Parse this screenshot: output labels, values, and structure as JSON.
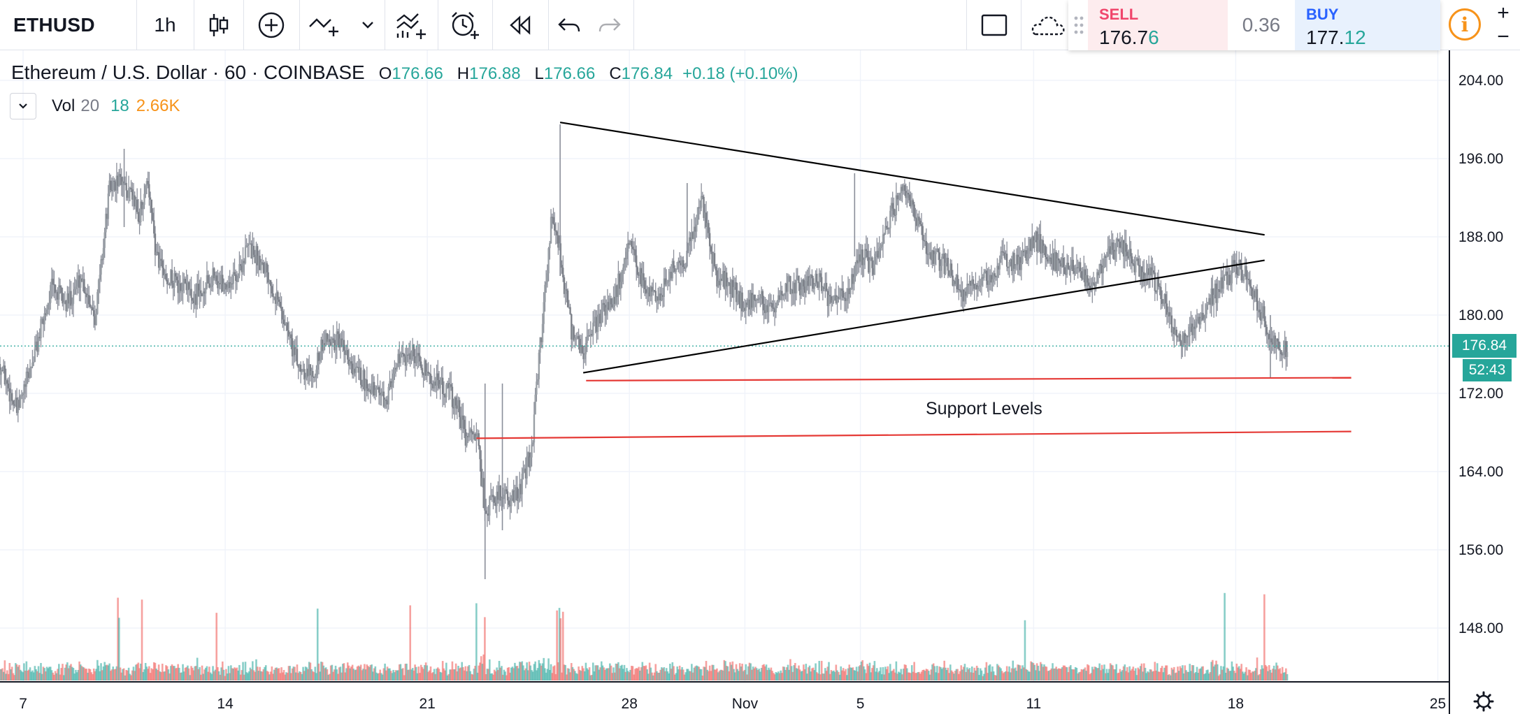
{
  "toolbar": {
    "symbol": "ETHUSD",
    "interval": "1h",
    "icons": [
      "candles-icon",
      "add-compare-icon",
      "drawing-tools-icon",
      "chevron-down-icon",
      "indicators-icon",
      "alert-icon",
      "replay-icon",
      "undo-icon",
      "redo-icon",
      "rectangle-icon",
      "cloud-save-icon"
    ]
  },
  "trade": {
    "sell_label": "SELL",
    "sell_price_main": "176.7",
    "sell_price_tail": "6",
    "spread": "0.36",
    "buy_label": "BUY",
    "buy_price_main": "177.",
    "buy_price_tail": "12",
    "info_label": "i",
    "zoom_in": "+",
    "zoom_out": "−"
  },
  "legend": {
    "title": "Ethereum / U.S. Dollar · 60 · COINBASE",
    "o_label": "O",
    "o_value": "176.66",
    "h_label": "H",
    "h_value": "176.88",
    "l_label": "L",
    "l_value": "176.66",
    "c_label": "C",
    "c_value": "176.84",
    "change": "+0.18 (+0.10%)",
    "vol_name": "Vol",
    "vol_length": "20",
    "vol_ma": "18",
    "vol_value": "2.66K"
  },
  "badges": {
    "last_price": "176.84",
    "countdown": "52:43"
  },
  "annotations": {
    "support_label": "Support Levels"
  },
  "colors": {
    "up": "#26a69a",
    "down": "#ef5350",
    "candle": "#8a8e99",
    "trendline": "#000000",
    "support": "#e53935",
    "accent_orange": "#f7931a"
  },
  "chart_data": {
    "type": "candlestick",
    "symbol": "ETHUSD",
    "exchange": "COINBASE",
    "timeframe": "60",
    "ylim": [
      140,
      206
    ],
    "y_ticks": [
      "204.00",
      "196.00",
      "188.00",
      "180.00",
      "172.00",
      "164.00",
      "156.00",
      "148.00"
    ],
    "y_tick_values": [
      204,
      196,
      188,
      180,
      172,
      164,
      156,
      148
    ],
    "x_ticks": [
      "7",
      "14",
      "21",
      "28",
      "Nov",
      "5",
      "11",
      "18",
      "25"
    ],
    "x_tick_days": [
      7,
      14,
      21,
      28,
      32,
      36,
      42,
      49,
      56
    ],
    "xlim_days": [
      6.2,
      56.4
    ],
    "close_series_days": [
      6.2,
      6.8,
      7.4,
      8.0,
      8.5,
      9.0,
      9.5,
      10.0,
      10.5,
      11.0,
      11.3,
      11.6,
      12.0,
      12.5,
      13.0,
      13.5,
      14.0,
      14.4,
      14.8,
      15.4,
      16.0,
      16.5,
      17.0,
      17.5,
      18.0,
      18.5,
      19.0,
      19.5,
      20.0,
      20.5,
      21.0,
      21.5,
      22.0,
      22.4,
      22.7,
      23.0,
      23.3,
      23.6,
      24.0,
      24.3,
      24.6,
      25.0,
      25.3,
      25.6,
      26.0,
      26.4,
      27.0,
      27.5,
      28.0,
      28.5,
      29.0,
      29.6,
      30.0,
      30.5,
      31.0,
      31.5,
      32.0,
      32.5,
      33.0,
      33.5,
      34.0,
      34.5,
      35.0,
      35.5,
      36.0,
      36.5,
      37.0,
      37.5,
      38.0,
      38.5,
      39.0,
      39.5,
      40.0,
      40.5,
      41.0,
      41.5,
      42.0,
      42.5,
      43.0,
      43.5,
      44.0,
      44.5,
      45.0,
      45.5,
      46.0,
      46.5,
      47.0,
      47.5,
      48.0,
      48.5,
      49.0,
      49.4,
      49.8,
      50.2,
      50.6,
      50.8
    ],
    "close_series": [
      175,
      170,
      176,
      183,
      181,
      184,
      180,
      193,
      194,
      190,
      194,
      186,
      184,
      183,
      182,
      184,
      183,
      184,
      187,
      185,
      180,
      175,
      174,
      178,
      177,
      174,
      173,
      171,
      175,
      176,
      174,
      173,
      171,
      167,
      168,
      160,
      161,
      162,
      161,
      163,
      166,
      180,
      190,
      186,
      178,
      176,
      180,
      182,
      187,
      183,
      182,
      185,
      186,
      192,
      184,
      183,
      181,
      182,
      180,
      183,
      183,
      184,
      181,
      182,
      186,
      185,
      190,
      193,
      189,
      186,
      185,
      182,
      183,
      184,
      186,
      185,
      188,
      186,
      185,
      185,
      183,
      186,
      187,
      185,
      184,
      182,
      177,
      179,
      181,
      183,
      185,
      184,
      181,
      178,
      176,
      176.84
    ],
    "spike_wicks": [
      {
        "day": 10.5,
        "high": 197,
        "low": 189
      },
      {
        "day": 23.0,
        "high": 173,
        "low": 153
      },
      {
        "day": 23.6,
        "high": 173,
        "low": 158
      },
      {
        "day": 25.6,
        "high": 199.5,
        "low": 184
      },
      {
        "day": 35.8,
        "high": 194.5,
        "low": 186
      },
      {
        "day": 30.0,
        "high": 193.5,
        "low": 185
      },
      {
        "day": 50.2,
        "high": 180,
        "low": 173.5
      }
    ],
    "last_price": 176.84,
    "volume_peak_days": [
      10.3,
      11.1,
      13.7,
      17.2,
      20.4,
      22.7,
      23.0,
      25.5,
      25.6,
      25.7,
      41.7,
      48.6,
      50.0
    ],
    "trendlines": [
      {
        "from": {
          "day": 25.6,
          "price": 199.7
        },
        "to": {
          "day": 50.0,
          "price": 188.2
        }
      },
      {
        "from": {
          "day": 26.4,
          "price": 174.1
        },
        "to": {
          "day": 50.0,
          "price": 185.6
        }
      }
    ],
    "support_lines": [
      {
        "from": {
          "day": 26.5,
          "price": 173.3
        },
        "to": {
          "day": 53.0,
          "price": 173.6
        }
      },
      {
        "from": {
          "day": 22.7,
          "price": 167.4
        },
        "to": {
          "day": 53.0,
          "price": 168.1
        }
      }
    ],
    "support_label": "Support Levels",
    "grid": true,
    "price_scale_position": "right"
  }
}
